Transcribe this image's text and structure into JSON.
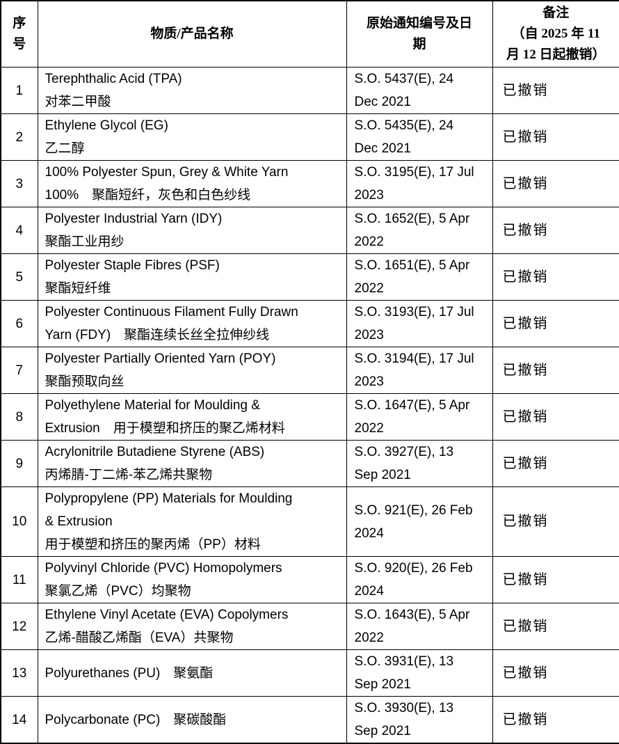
{
  "table": {
    "headers": {
      "no": "序\n号",
      "name": "物质/产品名称",
      "notification": "原始通知编号及日\n期",
      "remark": "备注\n（自 2025 年 11\n月 12 日起撤销）"
    },
    "rows": [
      {
        "no": "1",
        "name": "Terephthalic Acid (TPA)\n对苯二甲酸",
        "notification": "S.O. 5437(E), 24\nDec 2021",
        "remark": "已撤销"
      },
      {
        "no": "2",
        "name": "Ethylene Glycol (EG)\n乙二醇",
        "notification": "S.O. 5435(E), 24\nDec 2021",
        "remark": "已撤销"
      },
      {
        "no": "3",
        "name": "100% Polyester Spun, Grey & White Yarn\n100%　聚酯短纤，灰色和白色纱线",
        "notification": "S.O. 3195(E), 17 Jul\n2023",
        "remark": "已撤销"
      },
      {
        "no": "4",
        "name": "Polyester Industrial Yarn (IDY)\n聚酯工业用纱",
        "notification": "S.O. 1652(E), 5 Apr\n2022",
        "remark": "已撤销"
      },
      {
        "no": "5",
        "name": "Polyester Staple Fibres (PSF)\n聚酯短纤维",
        "notification": "S.O. 1651(E), 5 Apr\n2022",
        "remark": "已撤销"
      },
      {
        "no": "6",
        "name": "Polyester Continuous Filament Fully Drawn\nYarn (FDY)　聚酯连续长丝全拉伸纱线",
        "notification": "S.O. 3193(E), 17 Jul\n2023",
        "remark": "已撤销"
      },
      {
        "no": "7",
        "name": "Polyester Partially Oriented Yarn (POY)\n聚酯预取向丝",
        "notification": "S.O. 3194(E), 17 Jul\n2023",
        "remark": "已撤销"
      },
      {
        "no": "8",
        "name": "Polyethylene Material for Moulding &\nExtrusion　用于模塑和挤压的聚乙烯材料",
        "notification": "S.O. 1647(E), 5 Apr\n2022",
        "remark": "已撤销"
      },
      {
        "no": "9",
        "name": "Acrylonitrile Butadiene Styrene (ABS)\n丙烯腈-丁二烯-苯乙烯共聚物",
        "notification": "S.O. 3927(E), 13\nSep 2021",
        "remark": "已撤销"
      },
      {
        "no": "10",
        "name": "Polypropylene (PP) Materials for Moulding\n& Extrusion\n用于模塑和挤压的聚丙烯（PP）材料",
        "notification": "S.O. 921(E), 26 Feb\n2024",
        "remark": "已撤销"
      },
      {
        "no": "11",
        "name": "Polyvinyl Chloride (PVC) Homopolymers\n聚氯乙烯（PVC）均聚物",
        "notification": "S.O. 920(E), 26 Feb\n2024",
        "remark": "已撤销"
      },
      {
        "no": "12",
        "name": "Ethylene Vinyl Acetate (EVA) Copolymers\n乙烯-醋酸乙烯酯（EVA）共聚物",
        "notification": "S.O. 1643(E), 5 Apr\n2022",
        "remark": "已撤销"
      },
      {
        "no": "13",
        "name": "Polyurethanes (PU)　聚氨酯",
        "notification": "S.O. 3931(E), 13\nSep 2021",
        "remark": "已撤销"
      },
      {
        "no": "14",
        "name": "Polycarbonate (PC)　聚碳酸酯",
        "notification": "S.O. 3930(E), 13\nSep 2021",
        "remark": "已撤销"
      }
    ]
  }
}
